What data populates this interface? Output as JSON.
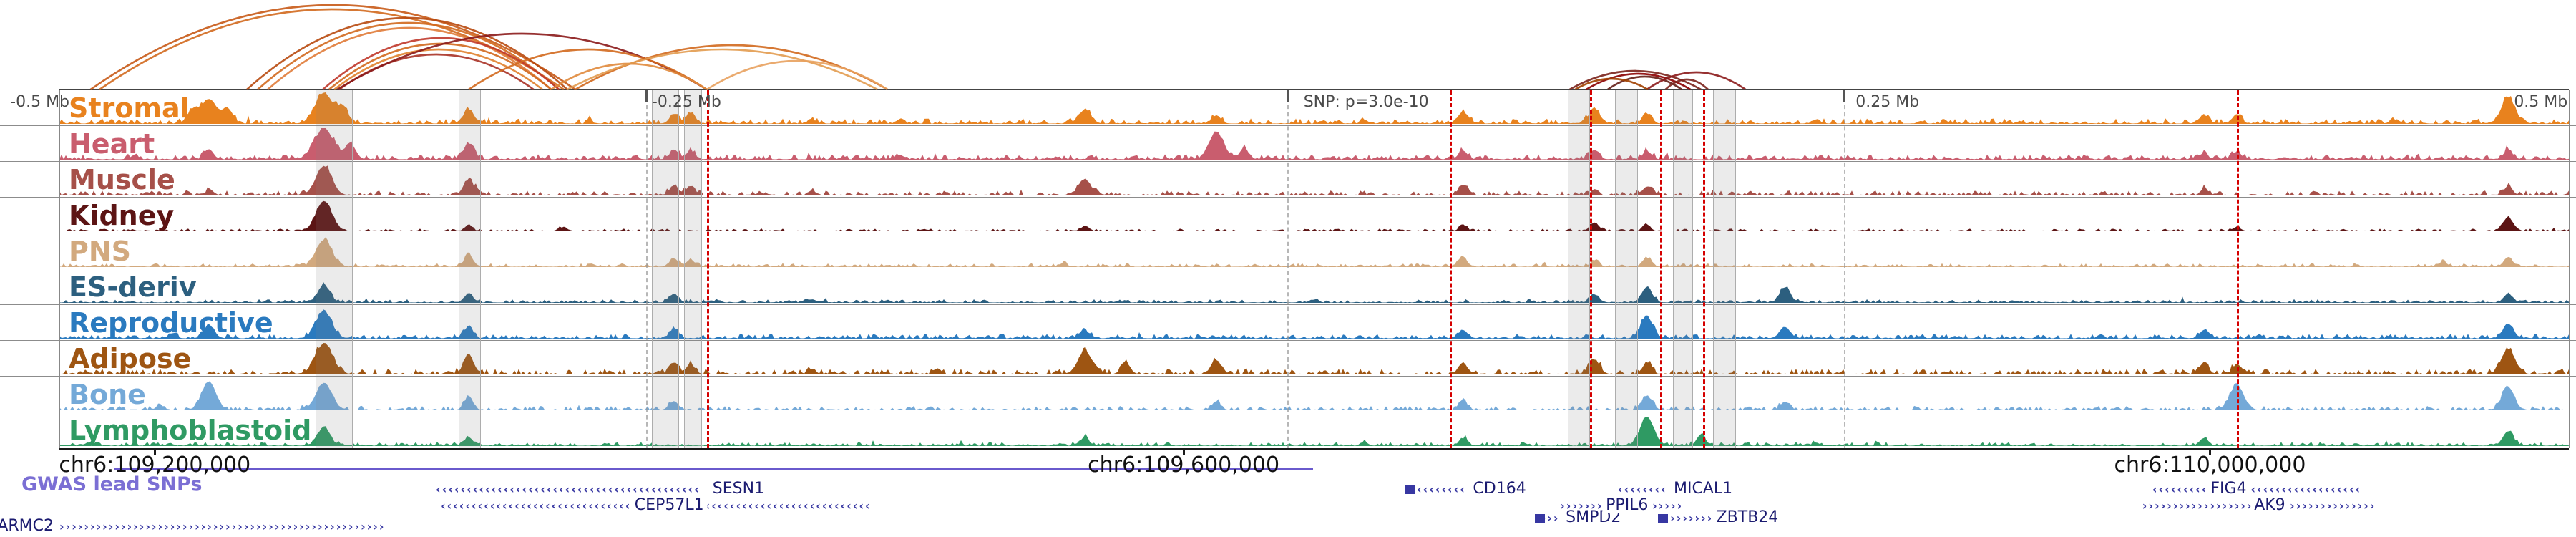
{
  "chart_data": {
    "type": "genome-browser-tracks",
    "region": {
      "tick_labels": [
        {
          "text": "-0.5 Mb",
          "x": 0.004,
          "anchor": "end"
        },
        {
          "text": "-0.25 Mb",
          "x": 0.2338,
          "anchor": "start"
        },
        {
          "text": "SNP: p=3.0e-10",
          "x": 0.4935,
          "anchor": "start"
        },
        {
          "text": "0.25 Mb",
          "x": 0.7135,
          "anchor": "start"
        },
        {
          "text": "0.5 Mb",
          "x": 0.9995,
          "anchor": "end"
        }
      ],
      "coordinates": [
        {
          "text": "chr6:109,200,000",
          "x": 0.038
        },
        {
          "text": "chr6:109,600,000",
          "x": 0.448
        },
        {
          "text": "chr6:110,000,000",
          "x": 0.857
        }
      ],
      "guide_lines": [
        0.2338,
        0.4892,
        0.7112
      ],
      "tick_text_color": "#4a4a4a",
      "coord_text_color": "#111111",
      "axis_color": "#1a1a1a"
    },
    "tracks": [
      {
        "label": "Stromal",
        "color": "#E8821E",
        "noise": 1.0,
        "peaks": [
          [
            0.053,
            0.4,
            6
          ],
          [
            0.0596,
            0.78,
            9
          ],
          [
            0.067,
            0.45,
            6
          ],
          [
            0.1054,
            0.97,
            10
          ],
          [
            0.113,
            0.5,
            6
          ],
          [
            0.1631,
            0.45,
            6
          ],
          [
            0.2449,
            0.3,
            5
          ],
          [
            0.2515,
            0.34,
            5
          ],
          [
            0.3,
            0.12,
            4
          ],
          [
            0.335,
            0.14,
            4
          ],
          [
            0.4086,
            0.42,
            7
          ],
          [
            0.461,
            0.26,
            5
          ],
          [
            0.52,
            0.12,
            4
          ],
          [
            0.5593,
            0.36,
            6
          ],
          [
            0.6117,
            0.48,
            6
          ],
          [
            0.6326,
            0.3,
            5
          ],
          [
            0.7,
            0.12,
            4
          ],
          [
            0.8546,
            0.26,
            5
          ],
          [
            0.8677,
            0.3,
            5
          ],
          [
            0.93,
            0.14,
            4
          ],
          [
            0.9758,
            0.8,
            8
          ]
        ]
      },
      {
        "label": "Heart",
        "color": "#C95D6E",
        "noise": 1.0,
        "peaks": [
          [
            0.03,
            0.14,
            4
          ],
          [
            0.0596,
            0.32,
            5
          ],
          [
            0.1054,
            0.97,
            11
          ],
          [
            0.116,
            0.48,
            6
          ],
          [
            0.1631,
            0.5,
            6
          ],
          [
            0.2449,
            0.28,
            5
          ],
          [
            0.2515,
            0.26,
            5
          ],
          [
            0.335,
            0.14,
            4
          ],
          [
            0.461,
            0.88,
            8
          ],
          [
            0.472,
            0.35,
            5
          ],
          [
            0.5593,
            0.28,
            5
          ],
          [
            0.6117,
            0.3,
            5
          ],
          [
            0.6326,
            0.24,
            5
          ],
          [
            0.8546,
            0.2,
            4
          ],
          [
            0.8677,
            0.24,
            5
          ],
          [
            0.9758,
            0.3,
            5
          ]
        ]
      },
      {
        "label": "Muscle",
        "color": "#A65049",
        "noise": 0.9,
        "peaks": [
          [
            0.06,
            0.18,
            4
          ],
          [
            0.1054,
            0.92,
            9
          ],
          [
            0.1631,
            0.48,
            6
          ],
          [
            0.2449,
            0.3,
            5
          ],
          [
            0.2515,
            0.28,
            5
          ],
          [
            0.3,
            0.14,
            4
          ],
          [
            0.4086,
            0.5,
            7
          ],
          [
            0.5593,
            0.32,
            5
          ],
          [
            0.6117,
            0.18,
            4
          ],
          [
            0.6326,
            0.26,
            5
          ],
          [
            0.8546,
            0.2,
            4
          ],
          [
            0.9758,
            0.26,
            5
          ]
        ]
      },
      {
        "label": "Kidney",
        "color": "#5C1414",
        "noise": 0.45,
        "peaks": [
          [
            0.1054,
            0.95,
            9
          ],
          [
            0.1631,
            0.2,
            4
          ],
          [
            0.2,
            0.1,
            4
          ],
          [
            0.4086,
            0.16,
            4
          ],
          [
            0.5593,
            0.2,
            4
          ],
          [
            0.6117,
            0.26,
            5
          ],
          [
            0.6326,
            0.2,
            4
          ],
          [
            0.8677,
            0.13,
            4
          ],
          [
            0.9758,
            0.42,
            6
          ]
        ]
      },
      {
        "label": "PNS",
        "color": "#D2A97E",
        "noise": 0.7,
        "peaks": [
          [
            0.1054,
            0.85,
            9
          ],
          [
            0.1631,
            0.38,
            5
          ],
          [
            0.2449,
            0.26,
            5
          ],
          [
            0.2515,
            0.22,
            5
          ],
          [
            0.4,
            0.1,
            4
          ],
          [
            0.5593,
            0.28,
            5
          ],
          [
            0.6117,
            0.2,
            4
          ],
          [
            0.6326,
            0.28,
            5
          ],
          [
            0.95,
            0.16,
            4
          ],
          [
            0.9758,
            0.3,
            5
          ]
        ]
      },
      {
        "label": "ES-deriv",
        "color": "#2C5F7F",
        "noise": 0.65,
        "peaks": [
          [
            0.1054,
            0.55,
            7
          ],
          [
            0.1631,
            0.28,
            5
          ],
          [
            0.2449,
            0.28,
            5
          ],
          [
            0.3,
            0.1,
            4
          ],
          [
            0.5,
            0.09,
            4
          ],
          [
            0.6117,
            0.26,
            5
          ],
          [
            0.6326,
            0.48,
            6
          ],
          [
            0.6876,
            0.48,
            6
          ],
          [
            0.9758,
            0.28,
            5
          ]
        ]
      },
      {
        "label": "Reproductive",
        "color": "#2A7ABF",
        "noise": 0.9,
        "peaks": [
          [
            0.045,
            0.16,
            4
          ],
          [
            0.0596,
            0.42,
            6
          ],
          [
            0.1054,
            0.85,
            9
          ],
          [
            0.1631,
            0.38,
            5
          ],
          [
            0.2449,
            0.3,
            5
          ],
          [
            0.4086,
            0.24,
            5
          ],
          [
            0.5593,
            0.26,
            5
          ],
          [
            0.6326,
            0.68,
            7
          ],
          [
            0.6876,
            0.36,
            6
          ],
          [
            0.8546,
            0.26,
            5
          ],
          [
            0.9758,
            0.46,
            6
          ]
        ]
      },
      {
        "label": "Adipose",
        "color": "#9E5512",
        "noise": 1.1,
        "peaks": [
          [
            0.1054,
            0.95,
            10
          ],
          [
            0.1631,
            0.58,
            6
          ],
          [
            0.2449,
            0.36,
            5
          ],
          [
            0.2515,
            0.32,
            5
          ],
          [
            0.3,
            0.16,
            4
          ],
          [
            0.35,
            0.18,
            4
          ],
          [
            0.4086,
            0.72,
            8
          ],
          [
            0.425,
            0.36,
            5
          ],
          [
            0.461,
            0.42,
            6
          ],
          [
            0.5593,
            0.36,
            5
          ],
          [
            0.6117,
            0.46,
            6
          ],
          [
            0.6326,
            0.36,
            5
          ],
          [
            0.8546,
            0.36,
            5
          ],
          [
            0.8677,
            0.26,
            5
          ],
          [
            0.9758,
            0.78,
            8
          ]
        ]
      },
      {
        "label": "Bone",
        "color": "#74A9D8",
        "noise": 0.8,
        "peaks": [
          [
            0.04,
            0.16,
            4
          ],
          [
            0.0596,
            0.9,
            8
          ],
          [
            0.1054,
            0.85,
            9
          ],
          [
            0.1631,
            0.42,
            5
          ],
          [
            0.2449,
            0.28,
            5
          ],
          [
            0.461,
            0.26,
            5
          ],
          [
            0.5593,
            0.28,
            5
          ],
          [
            0.6326,
            0.44,
            6
          ],
          [
            0.6876,
            0.26,
            5
          ],
          [
            0.8677,
            0.78,
            8
          ],
          [
            0.9758,
            0.72,
            7
          ]
        ]
      },
      {
        "label": "Lymphoblastoid",
        "color": "#2F9A63",
        "noise": 0.75,
        "peaks": [
          [
            0.1054,
            0.6,
            7
          ],
          [
            0.1631,
            0.26,
            5
          ],
          [
            0.4086,
            0.26,
            5
          ],
          [
            0.52,
            0.12,
            4
          ],
          [
            0.5593,
            0.22,
            4
          ],
          [
            0.6326,
            0.92,
            8
          ],
          [
            0.6542,
            0.36,
            5
          ],
          [
            0.7,
            0.1,
            4
          ],
          [
            0.8546,
            0.24,
            5
          ],
          [
            0.9758,
            0.46,
            6
          ]
        ]
      }
    ],
    "arcs": [
      [
        0.0124,
        0.2056,
        118,
        "#c85a17"
      ],
      [
        0.016,
        0.201,
        112,
        "#d2691e"
      ],
      [
        0.0747,
        0.2024,
        100,
        "#b84a0f"
      ],
      [
        0.079,
        0.1991,
        93,
        "#d2691e"
      ],
      [
        0.083,
        0.196,
        86,
        "#e07b39"
      ],
      [
        0.105,
        0.1991,
        72,
        "#c0392b"
      ],
      [
        0.1074,
        0.196,
        64,
        "#d2691e"
      ],
      [
        0.1095,
        0.1925,
        56,
        "#e0812e"
      ],
      [
        0.1115,
        0.189,
        49,
        "#a93226"
      ],
      [
        0.1107,
        0.258,
        78,
        "#8b1a1a"
      ],
      [
        0.1631,
        0.258,
        56,
        "#d2691e"
      ],
      [
        0.196,
        0.258,
        36,
        "#e08a3c"
      ],
      [
        0.2056,
        0.33,
        62,
        "#d2691e"
      ],
      [
        0.2024,
        0.326,
        56,
        "#e29b4f"
      ],
      [
        0.258,
        0.33,
        40,
        "#e8a15e"
      ],
      [
        0.6018,
        0.6542,
        26,
        "#7b241c"
      ],
      [
        0.6084,
        0.65,
        22,
        "#8b0000"
      ],
      [
        0.617,
        0.6465,
        18,
        "#641e16"
      ],
      [
        0.6326,
        0.6719,
        24,
        "#8b1a1a"
      ],
      [
        0.64,
        0.657,
        14,
        "#7b241c"
      ],
      [
        0.604,
        0.633,
        15,
        "#a04000"
      ]
    ],
    "snp_lines": [
      0.258,
      0.554,
      0.61,
      0.638,
      0.655,
      0.8677
    ],
    "snp_line_color": "#d40000",
    "highlight_bands": [
      [
        0.102,
        0.015
      ],
      [
        0.159,
        0.009
      ],
      [
        0.236,
        0.011
      ],
      [
        0.249,
        0.007
      ],
      [
        0.601,
        0.009
      ],
      [
        0.62,
        0.009
      ],
      [
        0.643,
        0.008
      ],
      [
        0.659,
        0.009
      ]
    ],
    "band_fill": "rgba(128,128,128,0.16)",
    "band_border": "#adadad",
    "gwas": {
      "label": "GWAS lead SNPs",
      "color": "#7B6FD4",
      "line_color": "#6A5ACD",
      "x1": 0.022,
      "x2": 0.4995
    },
    "genes": [
      {
        "name": "ARMC2",
        "x1": 0.0,
        "x2": 0.134,
        "row": 3,
        "strand": "›",
        "label": "start-out"
      },
      {
        "name": "SESN1",
        "x1": 0.15,
        "x2": 0.258,
        "row": 0,
        "strand": "‹",
        "label": "end"
      },
      {
        "name": "CEP57L1",
        "x1": 0.152,
        "x2": 0.33,
        "row": 1,
        "strand": "‹",
        "label": "center",
        "label_x": 0.243
      },
      {
        "name": "CD164",
        "x1": 0.536,
        "x2": 0.561,
        "row": 0,
        "strand": "‹",
        "label": "end",
        "box": true
      },
      {
        "name": "SMPD2",
        "x1": 0.588,
        "x2": 0.598,
        "row": 2,
        "strand": "›",
        "label": "end",
        "box": true
      },
      {
        "name": "PPIL6",
        "x1": 0.598,
        "x2": 0.648,
        "row": 1,
        "strand": "›",
        "label": "center",
        "label_x": 0.6247
      },
      {
        "name": "MICAL1",
        "x1": 0.621,
        "x2": 0.641,
        "row": 0,
        "strand": "‹",
        "label": "end"
      },
      {
        "name": "ZBTB24",
        "x1": 0.637,
        "x2": 0.658,
        "row": 2,
        "strand": "›",
        "label": "end",
        "box": true
      },
      {
        "name": "FIG4",
        "x1": 0.834,
        "x2": 0.921,
        "row": 0,
        "strand": "‹",
        "label": "center",
        "label_x": 0.8644
      },
      {
        "name": "AK9",
        "x1": 0.83,
        "x2": 0.927,
        "row": 1,
        "strand": "›",
        "label": "center",
        "label_x": 0.8808
      }
    ],
    "gene_color": "#3737A2",
    "gene_label_color": "#1B1B70",
    "separator_color": "#8c8c8c"
  }
}
